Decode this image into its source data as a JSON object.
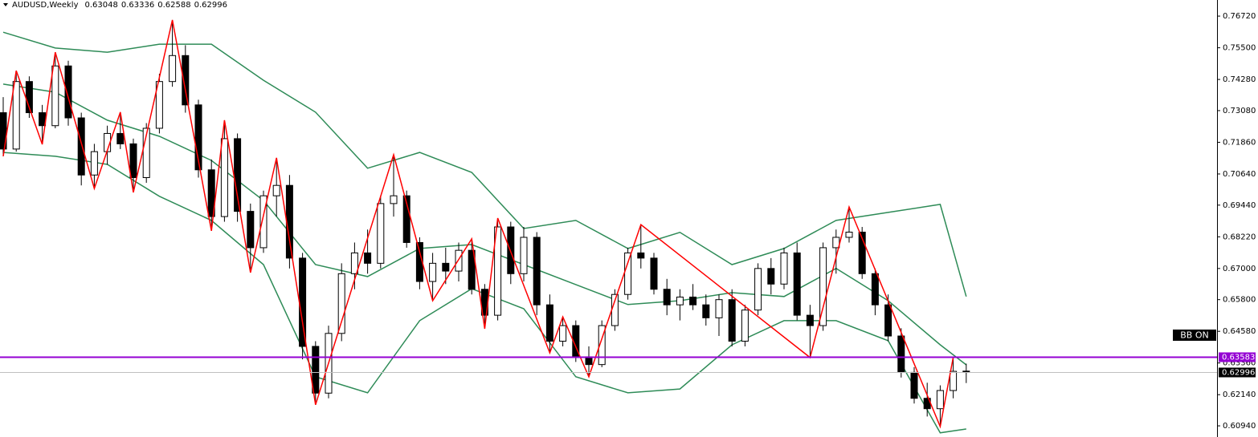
{
  "chart_data": {
    "type": "candlestick",
    "symbol": "AUDUSD,Weekly",
    "indicator_label": "BB ON",
    "ylim": [
      0.6051,
      0.7734
    ],
    "yticks": [
      {
        "value": 0.7672,
        "label": "0.76720"
      },
      {
        "value": 0.755,
        "label": "0.75500"
      },
      {
        "value": 0.7428,
        "label": "0.74280"
      },
      {
        "value": 0.7308,
        "label": "0.73080"
      },
      {
        "value": 0.7186,
        "label": "0.71860"
      },
      {
        "value": 0.7064,
        "label": "0.70640"
      },
      {
        "value": 0.6944,
        "label": "0.69440"
      },
      {
        "value": 0.6822,
        "label": "0.68220"
      },
      {
        "value": 0.67,
        "label": "0.67000"
      },
      {
        "value": 0.658,
        "label": "0.65800"
      },
      {
        "value": 0.6458,
        "label": "0.64580"
      },
      {
        "value": 0.6336,
        "label": "0.63360"
      },
      {
        "value": 0.6214,
        "label": "0.62140"
      },
      {
        "value": 0.6094,
        "label": "0.60940"
      }
    ],
    "hline": {
      "value": 0.63583,
      "color": "#9400d3"
    },
    "colors": {
      "up": "#ffffff",
      "down": "#000000",
      "bands": "#2e8b57",
      "zigzag": "#ff0000"
    },
    "ohlc": [
      [
        0.73,
        0.736,
        0.7132,
        0.716
      ],
      [
        0.716,
        0.7462,
        0.715,
        0.742
      ],
      [
        0.742,
        0.744,
        0.728,
        0.73
      ],
      [
        0.73,
        0.733,
        0.7178,
        0.725
      ],
      [
        0.725,
        0.7533,
        0.724,
        0.748
      ],
      [
        0.748,
        0.75,
        0.725,
        0.728
      ],
      [
        0.728,
        0.73,
        0.702,
        0.706
      ],
      [
        0.706,
        0.718,
        0.7008,
        0.715
      ],
      [
        0.715,
        0.725,
        0.71,
        0.722
      ],
      [
        0.722,
        0.7302,
        0.716,
        0.718
      ],
      [
        0.718,
        0.72,
        0.6993,
        0.705
      ],
      [
        0.705,
        0.726,
        0.703,
        0.724
      ],
      [
        0.724,
        0.745,
        0.722,
        0.742
      ],
      [
        0.742,
        0.7657,
        0.74,
        0.752
      ],
      [
        0.752,
        0.756,
        0.73,
        0.733
      ],
      [
        0.733,
        0.735,
        0.705,
        0.708
      ],
      [
        0.708,
        0.712,
        0.6845,
        0.69
      ],
      [
        0.69,
        0.7271,
        0.688,
        0.72
      ],
      [
        0.72,
        0.722,
        0.688,
        0.692
      ],
      [
        0.692,
        0.695,
        0.6684,
        0.678
      ],
      [
        0.678,
        0.7,
        0.676,
        0.698
      ],
      [
        0.698,
        0.7126,
        0.69,
        0.702
      ],
      [
        0.702,
        0.706,
        0.67,
        0.674
      ],
      [
        0.674,
        0.676,
        0.635,
        0.64
      ],
      [
        0.64,
        0.642,
        0.6175,
        0.622
      ],
      [
        0.622,
        0.648,
        0.62,
        0.645
      ],
      [
        0.645,
        0.672,
        0.642,
        0.668
      ],
      [
        0.668,
        0.68,
        0.662,
        0.676
      ],
      [
        0.676,
        0.685,
        0.668,
        0.672
      ],
      [
        0.672,
        0.698,
        0.67,
        0.695
      ],
      [
        0.695,
        0.7138,
        0.69,
        0.698
      ],
      [
        0.698,
        0.7,
        0.678,
        0.68
      ],
      [
        0.68,
        0.682,
        0.662,
        0.665
      ],
      [
        0.665,
        0.676,
        0.6576,
        0.672
      ],
      [
        0.672,
        0.678,
        0.664,
        0.669
      ],
      [
        0.669,
        0.68,
        0.665,
        0.677
      ],
      [
        0.677,
        0.6814,
        0.66,
        0.662
      ],
      [
        0.662,
        0.664,
        0.6468,
        0.652
      ],
      [
        0.652,
        0.6894,
        0.65,
        0.686
      ],
      [
        0.686,
        0.688,
        0.664,
        0.668
      ],
      [
        0.668,
        0.686,
        0.665,
        0.682
      ],
      [
        0.682,
        0.684,
        0.652,
        0.656
      ],
      [
        0.656,
        0.66,
        0.6375,
        0.642
      ],
      [
        0.642,
        0.6514,
        0.64,
        0.648
      ],
      [
        0.648,
        0.65,
        0.634,
        0.636
      ],
      [
        0.636,
        0.64,
        0.6283,
        0.633
      ],
      [
        0.633,
        0.65,
        0.632,
        0.648
      ],
      [
        0.648,
        0.662,
        0.646,
        0.66
      ],
      [
        0.66,
        0.678,
        0.658,
        0.676
      ],
      [
        0.676,
        0.6869,
        0.67,
        0.674
      ],
      [
        0.674,
        0.676,
        0.66,
        0.662
      ],
      [
        0.662,
        0.666,
        0.652,
        0.656
      ],
      [
        0.656,
        0.662,
        0.65,
        0.659
      ],
      [
        0.659,
        0.664,
        0.654,
        0.656
      ],
      [
        0.656,
        0.66,
        0.648,
        0.651
      ],
      [
        0.651,
        0.66,
        0.644,
        0.658
      ],
      [
        0.658,
        0.662,
        0.64,
        0.642
      ],
      [
        0.642,
        0.656,
        0.64,
        0.654
      ],
      [
        0.654,
        0.672,
        0.652,
        0.67
      ],
      [
        0.67,
        0.674,
        0.66,
        0.664
      ],
      [
        0.664,
        0.678,
        0.662,
        0.676
      ],
      [
        0.676,
        0.68,
        0.65,
        0.652
      ],
      [
        0.652,
        0.656,
        0.6357,
        0.648
      ],
      [
        0.648,
        0.68,
        0.646,
        0.678
      ],
      [
        0.678,
        0.685,
        0.668,
        0.682
      ],
      [
        0.682,
        0.6937,
        0.68,
        0.684
      ],
      [
        0.684,
        0.686,
        0.666,
        0.668
      ],
      [
        0.668,
        0.67,
        0.652,
        0.656
      ],
      [
        0.656,
        0.66,
        0.642,
        0.644
      ],
      [
        0.644,
        0.647,
        0.628,
        0.63
      ],
      [
        0.63,
        0.632,
        0.618,
        0.62
      ],
      [
        0.62,
        0.626,
        0.613,
        0.616
      ],
      [
        0.616,
        0.625,
        0.6091,
        0.623
      ],
      [
        0.623,
        0.6358,
        0.62,
        0.6304
      ],
      [
        0.63048,
        0.63336,
        0.62588,
        0.62996
      ]
    ],
    "bands": {
      "x": [
        0,
        4,
        8,
        12,
        16,
        20,
        24,
        28,
        32,
        36,
        40,
        44,
        48,
        52,
        56,
        60,
        64,
        68,
        72,
        74
      ],
      "upper": [
        0.761,
        0.7549,
        0.7533,
        0.7564,
        0.7564,
        0.7425,
        0.7302,
        0.7086,
        0.7147,
        0.707,
        0.6854,
        0.6885,
        0.6777,
        0.6839,
        0.6715,
        0.6777,
        0.6885,
        0.6916,
        0.6947,
        0.6592
      ],
      "middle": [
        0.741,
        0.7379,
        0.7271,
        0.7209,
        0.7116,
        0.6962,
        0.6715,
        0.6669,
        0.6777,
        0.6792,
        0.6715,
        0.6638,
        0.6561,
        0.6576,
        0.6607,
        0.6592,
        0.67,
        0.6576,
        0.6406,
        0.6329
      ],
      "lower": [
        0.7147,
        0.7132,
        0.7101,
        0.6978,
        0.6885,
        0.6715,
        0.6283,
        0.6221,
        0.6499,
        0.6622,
        0.6545,
        0.6283,
        0.6221,
        0.6236,
        0.6406,
        0.6499,
        0.6499,
        0.6422,
        0.6067,
        0.6082
      ]
    },
    "zigzag": {
      "x": [
        0,
        1,
        3,
        4,
        7,
        9,
        10,
        13,
        16,
        17,
        19,
        21,
        24,
        30,
        33,
        36,
        37,
        38,
        42,
        43,
        45,
        49,
        62,
        65,
        72,
        73
      ],
      "values": [
        0.7132,
        0.7462,
        0.7178,
        0.7533,
        0.7008,
        0.7302,
        0.6993,
        0.7657,
        0.6845,
        0.7271,
        0.6684,
        0.7126,
        0.6175,
        0.7138,
        0.6576,
        0.6814,
        0.6468,
        0.6894,
        0.6375,
        0.6514,
        0.6283,
        0.6869,
        0.6357,
        0.6937,
        0.6091,
        0.6358
      ]
    }
  }
}
